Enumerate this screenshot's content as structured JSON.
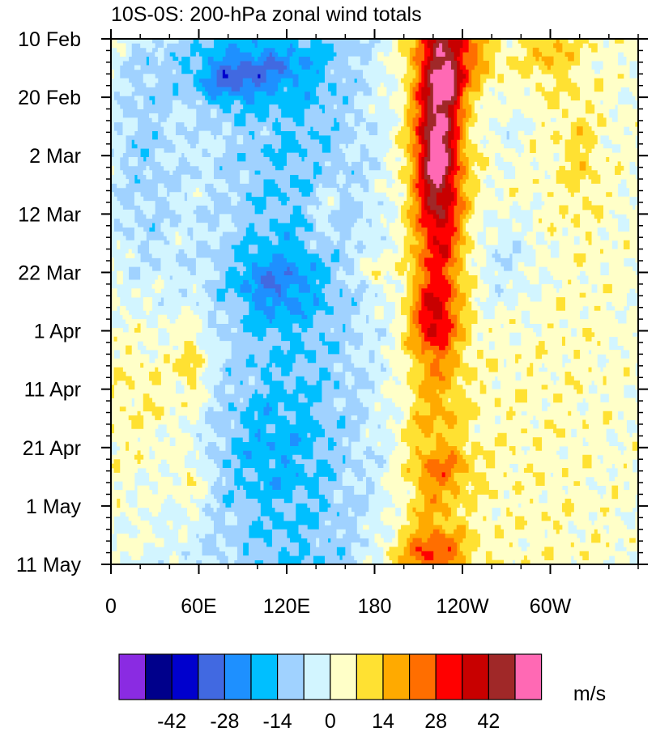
{
  "chart_data": {
    "type": "heatmap",
    "title": "10S-0S: 200-hPa zonal wind totals",
    "x_tick_labels": [
      "0",
      "60E",
      "120E",
      "180",
      "120W",
      "60W"
    ],
    "x_tick_degrees": [
      0,
      60,
      120,
      180,
      240,
      300
    ],
    "x_range_degrees": [
      0,
      360
    ],
    "y_tick_labels": [
      "10 Feb",
      "20 Feb",
      "2 Mar",
      "12 Mar",
      "22 Mar",
      "1 Apr",
      "11 Apr",
      "21 Apr",
      "1 May",
      "11 May"
    ],
    "y_tick_days": [
      0,
      10,
      20,
      30,
      40,
      50,
      60,
      70,
      80,
      90
    ],
    "y_range_days": [
      0,
      90
    ],
    "colorbar": {
      "unit_label": "m/s",
      "colors": [
        "#8a2be2",
        "#00008b",
        "#0000cd",
        "#4169e1",
        "#1e90ff",
        "#00bfff",
        "#a0d2ff",
        "#d2f5ff",
        "#ffffc8",
        "#ffe132",
        "#ffaa00",
        "#ff6e00",
        "#ff0000",
        "#c80000",
        "#a02828",
        "#ff69b4"
      ],
      "levels": [
        -49,
        -42,
        -35,
        -28,
        -21,
        -14,
        -7,
        0,
        7,
        14,
        21,
        28,
        35,
        42,
        49
      ],
      "tick_labels": [
        "-42",
        "-28",
        "-14",
        "0",
        "14",
        "28",
        "42"
      ],
      "tick_values": [
        -42,
        -28,
        -14,
        0,
        14,
        28,
        42
      ]
    }
  }
}
